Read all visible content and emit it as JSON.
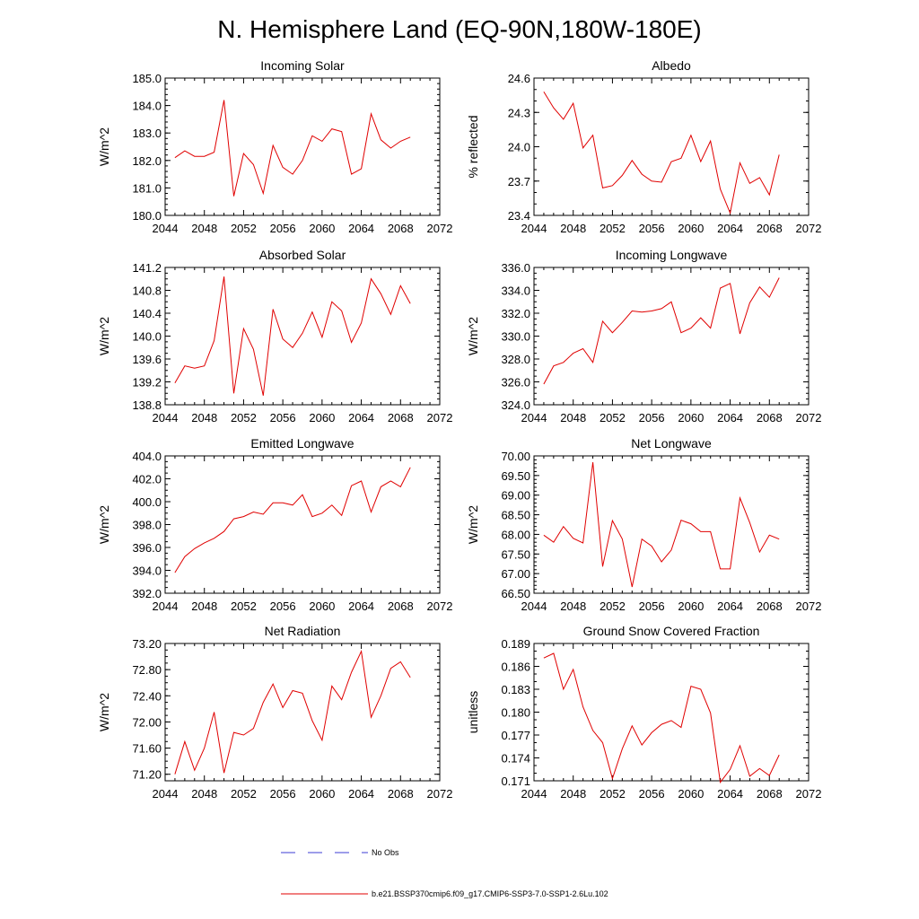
{
  "figure": {
    "title": "N. Hemisphere Land (EQ-90N,180W-180E)"
  },
  "legend": [
    {
      "label": "No Obs",
      "color": "#3b3bd6",
      "dashed": true
    },
    {
      "label": "b.e21.BSSP370cmip6.f09_g17.CMIP6-SSP3-7.0-SSP1-2.6Lu.102",
      "color": "#e00000",
      "dashed": false
    }
  ],
  "chart_data": [
    {
      "type": "line",
      "title": "Incoming Solar",
      "xlabel": "",
      "ylabel": "W/m^2",
      "xlim": [
        2044,
        2072
      ],
      "xticks": [
        "2044",
        "2048",
        "2052",
        "2056",
        "2060",
        "2064",
        "2068",
        "2072"
      ],
      "ylim": [
        180.0,
        185.0
      ],
      "yticks": [
        "180.0",
        "181.0",
        "182.0",
        "183.0",
        "184.0",
        "185.0"
      ],
      "yminor": 0.2,
      "x": [
        2045,
        2046,
        2047,
        2048,
        2049,
        2050,
        2051,
        2052,
        2053,
        2054,
        2055,
        2056,
        2057,
        2058,
        2059,
        2060,
        2061,
        2062,
        2063,
        2064,
        2065,
        2066,
        2067,
        2068,
        2069
      ],
      "series": [
        {
          "color": "#e00000",
          "values": [
            182.1,
            182.35,
            182.15,
            182.15,
            182.3,
            184.2,
            180.7,
            182.25,
            181.85,
            180.8,
            182.55,
            181.75,
            181.5,
            182.0,
            182.9,
            182.7,
            183.15,
            183.05,
            181.5,
            181.7,
            183.7,
            182.75,
            182.45,
            182.7,
            182.85
          ]
        }
      ]
    },
    {
      "type": "line",
      "title": "Albedo",
      "xlabel": "",
      "ylabel": "% reflected",
      "xlim": [
        2044,
        2072
      ],
      "xticks": [
        "2044",
        "2048",
        "2052",
        "2056",
        "2060",
        "2064",
        "2068",
        "2072"
      ],
      "ylim": [
        23.4,
        24.6
      ],
      "yticks": [
        "23.4",
        "23.7",
        "24.0",
        "24.3",
        "24.6"
      ],
      "yminor": 0.1,
      "x": [
        2045,
        2046,
        2047,
        2048,
        2049,
        2050,
        2051,
        2052,
        2053,
        2054,
        2055,
        2056,
        2057,
        2058,
        2059,
        2060,
        2061,
        2062,
        2063,
        2064,
        2065,
        2066,
        2067,
        2068,
        2069
      ],
      "series": [
        {
          "color": "#e00000",
          "values": [
            24.48,
            24.34,
            24.24,
            24.38,
            23.99,
            24.1,
            23.64,
            23.66,
            23.75,
            23.88,
            23.76,
            23.7,
            23.69,
            23.87,
            23.9,
            24.1,
            23.87,
            24.05,
            23.63,
            23.42,
            23.86,
            23.68,
            23.73,
            23.58,
            23.93
          ]
        }
      ]
    },
    {
      "type": "line",
      "title": "Absorbed Solar",
      "xlabel": "",
      "ylabel": "W/m^2",
      "xlim": [
        2044,
        2072
      ],
      "xticks": [
        "2044",
        "2048",
        "2052",
        "2056",
        "2060",
        "2064",
        "2068",
        "2072"
      ],
      "ylim": [
        138.8,
        141.2
      ],
      "yticks": [
        "138.8",
        "139.2",
        "139.6",
        "140.0",
        "140.4",
        "140.8",
        "141.2"
      ],
      "yminor": 0.1,
      "x": [
        2045,
        2046,
        2047,
        2048,
        2049,
        2050,
        2051,
        2052,
        2053,
        2054,
        2055,
        2056,
        2057,
        2058,
        2059,
        2060,
        2061,
        2062,
        2063,
        2064,
        2065,
        2066,
        2067,
        2068,
        2069
      ],
      "series": [
        {
          "color": "#e00000",
          "values": [
            139.18,
            139.48,
            139.44,
            139.48,
            139.92,
            141.04,
            139.0,
            140.13,
            139.77,
            138.96,
            140.47,
            139.95,
            139.8,
            140.05,
            140.42,
            139.98,
            140.6,
            140.44,
            139.89,
            140.23,
            141.0,
            140.74,
            140.38,
            140.88,
            140.57
          ]
        }
      ]
    },
    {
      "type": "line",
      "title": "Incoming Longwave",
      "xlabel": "",
      "ylabel": "W/m^2",
      "xlim": [
        2044,
        2072
      ],
      "xticks": [
        "2044",
        "2048",
        "2052",
        "2056",
        "2060",
        "2064",
        "2068",
        "2072"
      ],
      "ylim": [
        324.0,
        336.0
      ],
      "yticks": [
        "324.0",
        "326.0",
        "328.0",
        "330.0",
        "332.0",
        "334.0",
        "336.0"
      ],
      "yminor": 0.5,
      "x": [
        2045,
        2046,
        2047,
        2048,
        2049,
        2050,
        2051,
        2052,
        2053,
        2054,
        2055,
        2056,
        2057,
        2058,
        2059,
        2060,
        2061,
        2062,
        2063,
        2064,
        2065,
        2066,
        2067,
        2068,
        2069
      ],
      "series": [
        {
          "color": "#e00000",
          "values": [
            325.8,
            327.4,
            327.7,
            328.5,
            328.9,
            327.7,
            331.3,
            330.3,
            331.2,
            332.2,
            332.1,
            332.2,
            332.4,
            333.0,
            330.3,
            330.7,
            331.6,
            330.7,
            334.2,
            334.6,
            330.2,
            332.9,
            334.3,
            333.4,
            335.1
          ]
        }
      ]
    },
    {
      "type": "line",
      "title": "Emitted Longwave",
      "xlabel": "",
      "ylabel": "W/m^2",
      "xlim": [
        2044,
        2072
      ],
      "xticks": [
        "2044",
        "2048",
        "2052",
        "2056",
        "2060",
        "2064",
        "2068",
        "2072"
      ],
      "ylim": [
        392.0,
        404.0
      ],
      "yticks": [
        "392.0",
        "394.0",
        "396.0",
        "398.0",
        "400.0",
        "402.0",
        "404.0"
      ],
      "yminor": 0.5,
      "x": [
        2045,
        2046,
        2047,
        2048,
        2049,
        2050,
        2051,
        2052,
        2053,
        2054,
        2055,
        2056,
        2057,
        2058,
        2059,
        2060,
        2061,
        2062,
        2063,
        2064,
        2065,
        2066,
        2067,
        2068,
        2069
      ],
      "series": [
        {
          "color": "#e00000",
          "values": [
            393.8,
            395.2,
            395.9,
            396.4,
            396.8,
            397.4,
            398.5,
            398.7,
            399.1,
            398.9,
            399.9,
            399.9,
            399.7,
            400.6,
            398.7,
            399.0,
            399.7,
            398.8,
            401.4,
            401.8,
            399.1,
            401.3,
            401.8,
            401.3,
            403.0
          ]
        }
      ]
    },
    {
      "type": "line",
      "title": "Net Longwave",
      "xlabel": "",
      "ylabel": "W/m^2",
      "xlim": [
        2044,
        2072
      ],
      "xticks": [
        "2044",
        "2048",
        "2052",
        "2056",
        "2060",
        "2064",
        "2068",
        "2072"
      ],
      "ylim": [
        66.5,
        70.0
      ],
      "yticks": [
        "66.50",
        "67.00",
        "67.50",
        "68.00",
        "68.50",
        "69.00",
        "69.50",
        "70.00"
      ],
      "yminor": 0.1,
      "x": [
        2045,
        2046,
        2047,
        2048,
        2049,
        2050,
        2051,
        2052,
        2053,
        2054,
        2055,
        2056,
        2057,
        2058,
        2059,
        2060,
        2061,
        2062,
        2063,
        2064,
        2065,
        2066,
        2067,
        2068,
        2069
      ],
      "series": [
        {
          "color": "#e00000",
          "values": [
            67.98,
            67.8,
            68.2,
            67.9,
            67.78,
            69.84,
            67.18,
            68.35,
            67.88,
            66.66,
            67.88,
            67.7,
            67.3,
            67.6,
            68.36,
            68.27,
            68.07,
            68.07,
            67.12,
            67.12,
            68.93,
            68.3,
            67.55,
            67.98,
            67.88
          ]
        }
      ]
    },
    {
      "type": "line",
      "title": "Net Radiation",
      "xlabel": "",
      "ylabel": "W/m^2",
      "xlim": [
        2044,
        2072
      ],
      "xticks": [
        "2044",
        "2048",
        "2052",
        "2056",
        "2060",
        "2064",
        "2068",
        "2072"
      ],
      "ylim": [
        71.1,
        73.2
      ],
      "yticks": [
        "71.20",
        "71.60",
        "72.00",
        "72.40",
        "72.80",
        "73.20"
      ],
      "ytickvals": [
        71.2,
        71.6,
        72.0,
        72.4,
        72.8,
        73.2
      ],
      "yminor": 0.1,
      "x": [
        2045,
        2046,
        2047,
        2048,
        2049,
        2050,
        2051,
        2052,
        2053,
        2054,
        2055,
        2056,
        2057,
        2058,
        2059,
        2060,
        2061,
        2062,
        2063,
        2064,
        2065,
        2066,
        2067,
        2068,
        2069
      ],
      "series": [
        {
          "color": "#e00000",
          "values": [
            71.2,
            71.7,
            71.26,
            71.6,
            72.15,
            71.22,
            71.84,
            71.8,
            71.9,
            72.3,
            72.58,
            72.22,
            72.48,
            72.44,
            72.02,
            71.72,
            72.55,
            72.34,
            72.76,
            73.08,
            72.07,
            72.4,
            72.82,
            72.92,
            72.68
          ]
        }
      ]
    },
    {
      "type": "line",
      "title": "Ground Snow Covered Fraction",
      "xlabel": "",
      "ylabel": "unitless",
      "xlim": [
        2044,
        2072
      ],
      "xticks": [
        "2044",
        "2048",
        "2052",
        "2056",
        "2060",
        "2064",
        "2068",
        "2072"
      ],
      "ylim": [
        0.171,
        0.189
      ],
      "yticks": [
        "0.171",
        "0.174",
        "0.177",
        "0.180",
        "0.183",
        "0.186",
        "0.189"
      ],
      "yminor": 0.001,
      "x": [
        2045,
        2046,
        2047,
        2048,
        2049,
        2050,
        2051,
        2052,
        2053,
        2054,
        2055,
        2056,
        2057,
        2058,
        2059,
        2060,
        2061,
        2062,
        2063,
        2064,
        2065,
        2066,
        2067,
        2068,
        2069
      ],
      "series": [
        {
          "color": "#e00000",
          "values": [
            0.1871,
            0.1877,
            0.183,
            0.1856,
            0.1807,
            0.1776,
            0.176,
            0.1713,
            0.1752,
            0.1782,
            0.1757,
            0.1773,
            0.1784,
            0.1789,
            0.178,
            0.1834,
            0.183,
            0.1799,
            0.1708,
            0.1725,
            0.1756,
            0.1716,
            0.1726,
            0.1717,
            0.1744
          ]
        }
      ]
    }
  ]
}
